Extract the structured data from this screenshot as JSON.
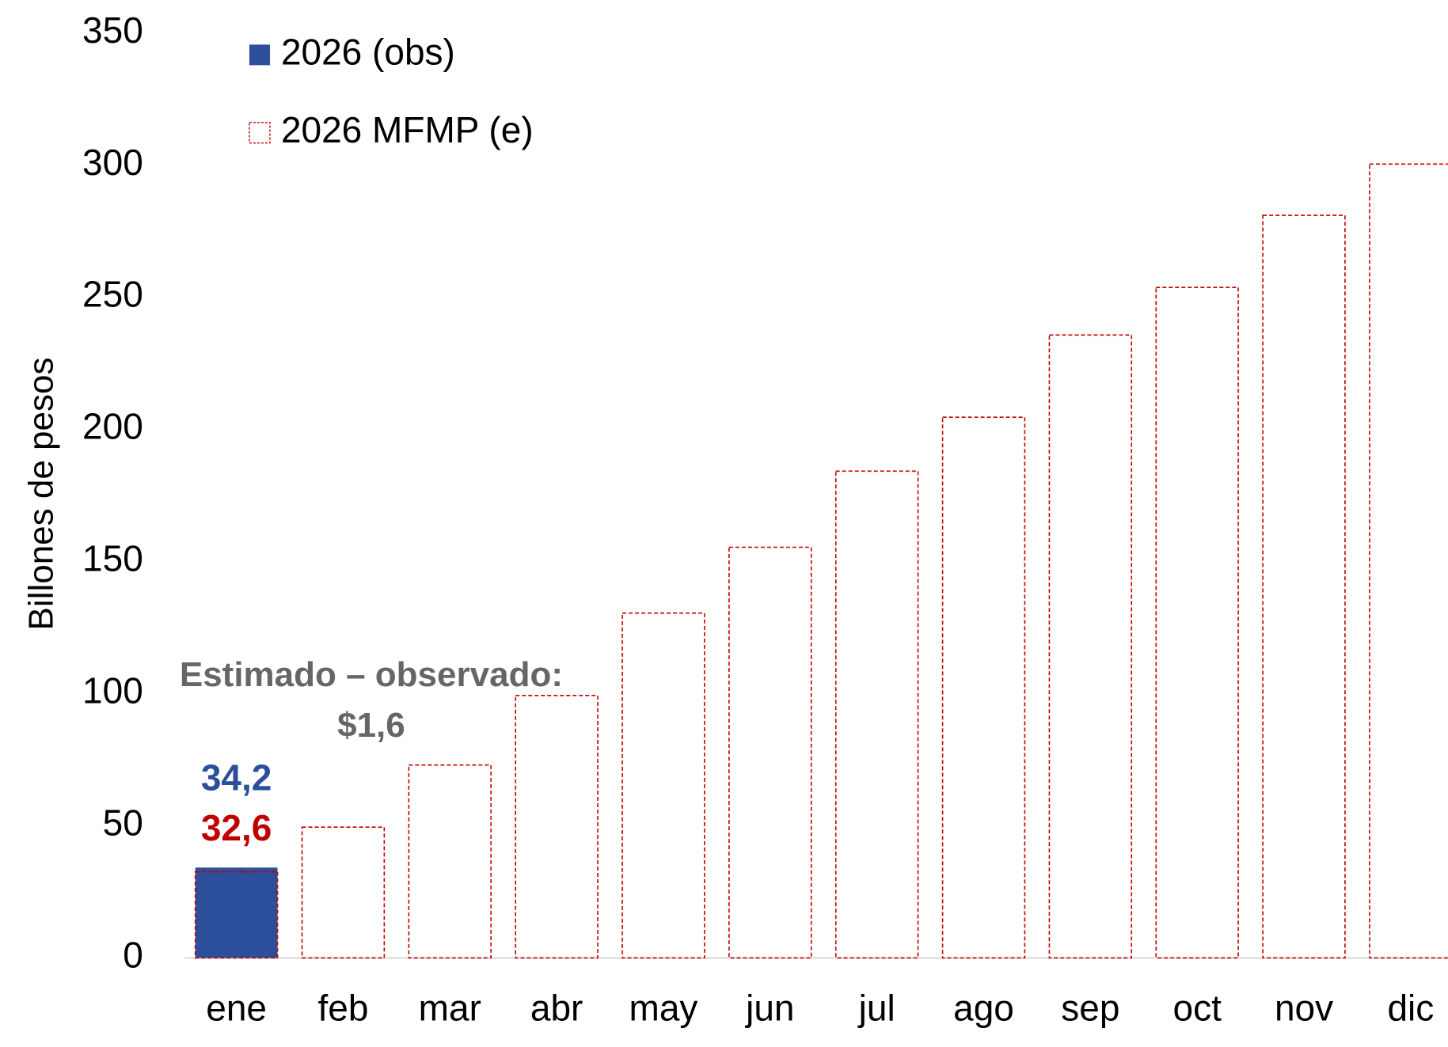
{
  "chart_data": {
    "type": "bar",
    "y_axis_label": "Billones de pesos",
    "categories": [
      "ene",
      "feb",
      "mar",
      "abr",
      "may",
      "jun",
      "jul",
      "ago",
      "sep",
      "oct",
      "nov",
      "dic"
    ],
    "series": [
      {
        "name": "2026 (obs)",
        "color": "#2b4f9a",
        "style": "solid",
        "values": [
          34.2,
          null,
          null,
          null,
          null,
          null,
          null,
          null,
          null,
          null,
          null,
          null
        ],
        "value_labels": [
          "34,2",
          null,
          null,
          null,
          null,
          null,
          null,
          null,
          null,
          null,
          null,
          null
        ]
      },
      {
        "name": "2026 MFMP (e)",
        "color": "#c00000",
        "style": "dashed",
        "values": [
          32.6,
          49.5,
          73,
          99.3,
          130.5,
          155.4,
          184.2,
          204.6,
          235.7,
          253.7,
          281,
          300.4
        ],
        "value_labels": [
          "32,6",
          null,
          null,
          null,
          null,
          null,
          null,
          null,
          null,
          null,
          null,
          null
        ]
      }
    ],
    "annotation": [
      "Estimado – observado:",
      "$1,6"
    ],
    "annotation_color": "#666666",
    "ylim": [
      0,
      350
    ],
    "yticks": [
      0,
      50,
      100,
      150,
      200,
      250,
      300,
      350
    ],
    "grid": false,
    "legend": "top-left"
  }
}
